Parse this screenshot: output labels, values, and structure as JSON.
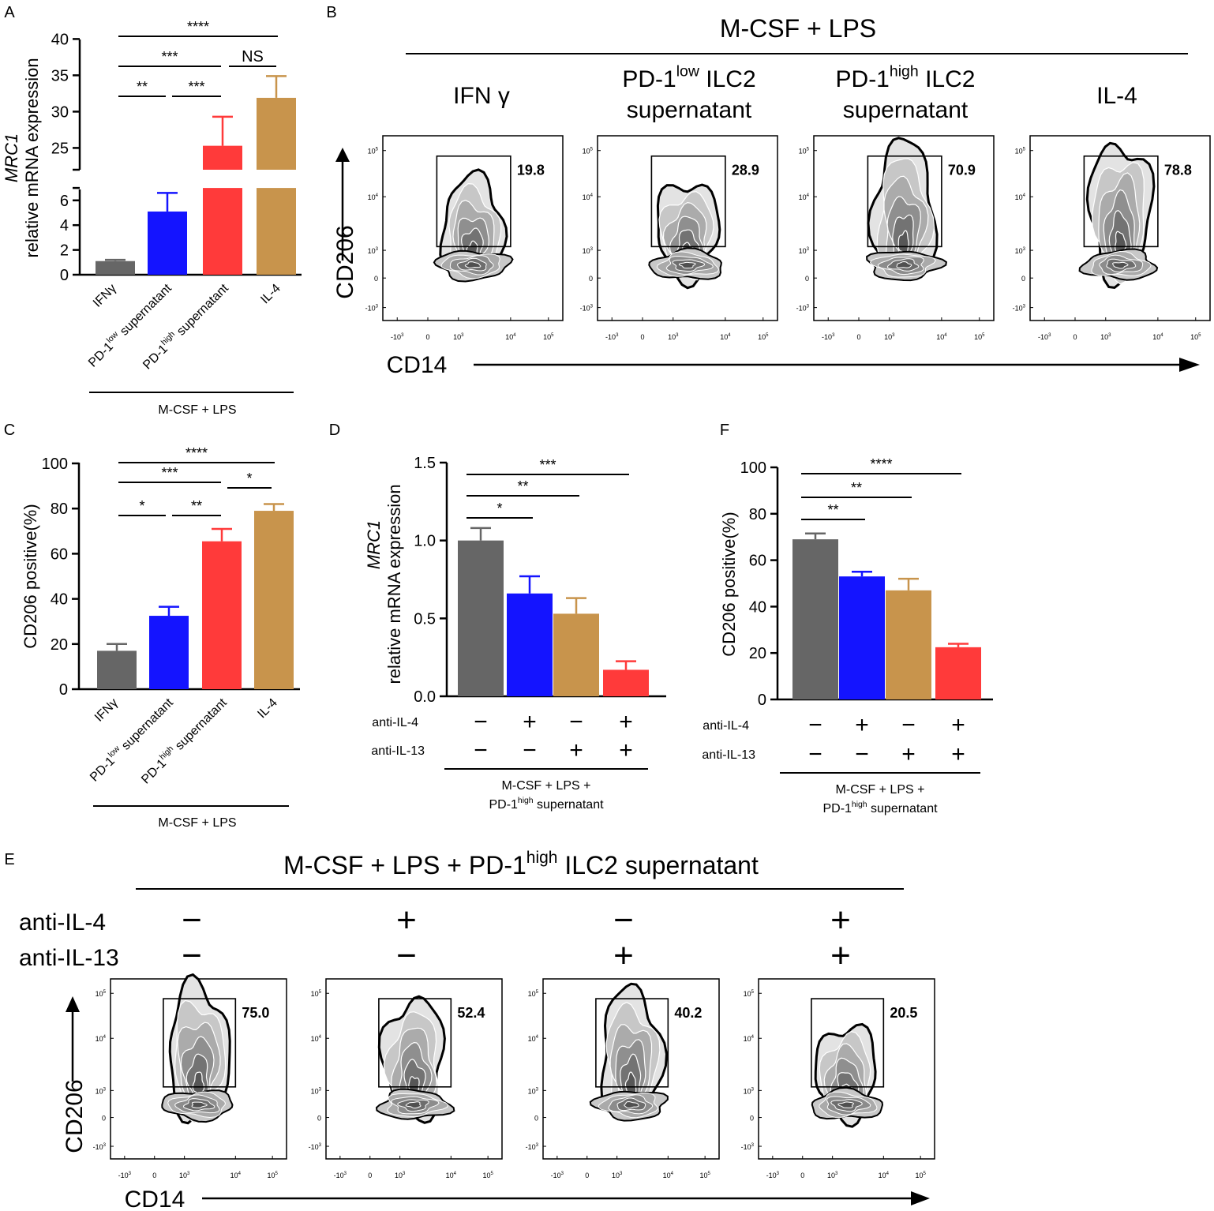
{
  "colors": {
    "grey": "#666666",
    "blue": "#1414ff",
    "red": "#ff3a3a",
    "gold": "#c8944c",
    "black": "#000000"
  },
  "panels": {
    "A": "A",
    "B": "B",
    "C": "C",
    "D": "D",
    "E": "E",
    "F": "F"
  },
  "labels": {
    "treatment": "M-CSF + LPS",
    "treatment_e": "M-CSF + LPS + PD-1high ILC2 supernatant",
    "pd1": "PD-1",
    "low": "low",
    "high": "high",
    "supernatant": "supernatant",
    "ilc2": "ILC2",
    "ifng_sp": "IFN γ",
    "il4": "IL-4",
    "mcsf_lps_plus": "M-CSF + LPS +",
    "anti_il4": "anti-IL-4",
    "anti_il13": "anti-IL-13",
    "mrc1": "MRC1",
    "rel_mrna": "relative mRNA expression",
    "cd206_pos": "CD206 positive(%)",
    "cd206": "CD206",
    "cd14": "CD14",
    "minus": "−",
    "plus": "+"
  },
  "chart_data": [
    {
      "id": "A",
      "type": "bar",
      "title": "",
      "ylabel": "MRC1 relative mRNA expression",
      "axis_break": {
        "lower": [
          0,
          7
        ],
        "upper": [
          22,
          40
        ]
      },
      "yticks_lower": [
        0,
        2,
        4,
        6
      ],
      "yticks_upper": [
        25,
        30,
        35,
        40
      ],
      "categories": [
        "IFNγ",
        "PD-1low supernatant",
        "PD-1high supernatant",
        "IL-4"
      ],
      "values": [
        1.1,
        5.1,
        25.3,
        31.9
      ],
      "errors": [
        0.1,
        1.5,
        4.0,
        3.0
      ],
      "colors": [
        "#666666",
        "#1414ff",
        "#ff3a3a",
        "#c8944c"
      ],
      "group_label": "M-CSF + LPS",
      "significance": [
        {
          "from": 0,
          "to": 1,
          "label": "**"
        },
        {
          "from": 1,
          "to": 2,
          "label": "***"
        },
        {
          "from": 0,
          "to": 2,
          "label": "***"
        },
        {
          "from": 2,
          "to": 3,
          "label": "NS"
        },
        {
          "from": 0,
          "to": 3,
          "label": "****"
        }
      ]
    },
    {
      "id": "C",
      "type": "bar",
      "title": "",
      "ylabel": "CD206 positive(%)",
      "ylim": [
        0,
        100
      ],
      "yticks": [
        0,
        20,
        40,
        60,
        80,
        100
      ],
      "categories": [
        "IFNγ",
        "PD-1low supernatant",
        "PD-1high supernatant",
        "IL-4"
      ],
      "values": [
        17,
        32.5,
        65.5,
        79
      ],
      "errors": [
        3,
        4,
        5.5,
        3
      ],
      "colors": [
        "#666666",
        "#1414ff",
        "#ff3a3a",
        "#c8944c"
      ],
      "group_label": "M-CSF + LPS",
      "significance": [
        {
          "from": 0,
          "to": 1,
          "label": "*"
        },
        {
          "from": 1,
          "to": 2,
          "label": "**"
        },
        {
          "from": 0,
          "to": 2,
          "label": "***"
        },
        {
          "from": 2,
          "to": 3,
          "label": "*"
        },
        {
          "from": 0,
          "to": 3,
          "label": "****"
        }
      ]
    },
    {
      "id": "D",
      "type": "bar",
      "title": "",
      "ylabel": "MRC1 relative mRNA expression",
      "ylim": [
        0,
        1.5
      ],
      "yticks": [
        0.0,
        0.5,
        1.0,
        1.5
      ],
      "ytick_labels": [
        "0.0",
        "0.5",
        "1.0",
        "1.5"
      ],
      "values": [
        1.0,
        0.66,
        0.53,
        0.17
      ],
      "errors": [
        0.08,
        0.11,
        0.1,
        0.055
      ],
      "colors": [
        "#666666",
        "#1414ff",
        "#c8944c",
        "#ff3a3a"
      ],
      "anti_il4": [
        "−",
        "+",
        "−",
        "+"
      ],
      "anti_il13": [
        "−",
        "−",
        "+",
        "+"
      ],
      "group_label": [
        "M-CSF + LPS +",
        "PD-1high supernatant"
      ],
      "significance": [
        {
          "from": 0,
          "to": 1,
          "label": "*"
        },
        {
          "from": 0,
          "to": 2,
          "label": "**"
        },
        {
          "from": 0,
          "to": 3,
          "label": "***"
        }
      ]
    },
    {
      "id": "F",
      "type": "bar",
      "title": "",
      "ylabel": "CD206 positive(%)",
      "ylim": [
        0,
        100
      ],
      "yticks": [
        0,
        20,
        40,
        60,
        80,
        100
      ],
      "values": [
        69,
        53,
        47,
        22.5
      ],
      "errors": [
        2.5,
        2,
        5,
        1.5
      ],
      "colors": [
        "#666666",
        "#1414ff",
        "#c8944c",
        "#ff3a3a"
      ],
      "anti_il4": [
        "−",
        "+",
        "−",
        "+"
      ],
      "anti_il13": [
        "−",
        "−",
        "+",
        "+"
      ],
      "group_label": [
        "M-CSF + LPS +",
        "PD-1high supernatant"
      ],
      "significance": [
        {
          "from": 0,
          "to": 1,
          "label": "**"
        },
        {
          "from": 0,
          "to": 2,
          "label": "**"
        },
        {
          "from": 0,
          "to": 3,
          "label": "****"
        }
      ]
    },
    {
      "id": "B",
      "type": "scatter",
      "subtype": "flow-cytometry-contour",
      "title": "M-CSF + LPS",
      "xlabel": "CD14",
      "ylabel": "CD206",
      "axis_ticks": [
        "-10^3",
        "0",
        "10^3",
        "10^4",
        "10^5"
      ],
      "plots": [
        {
          "condition": "IFN γ",
          "gate_percent": "19.8"
        },
        {
          "condition": "PD-1low ILC2 supernatant",
          "gate_percent": "28.9"
        },
        {
          "condition": "PD-1high ILC2 supernatant",
          "gate_percent": "70.9"
        },
        {
          "condition": "IL-4",
          "gate_percent": "78.8"
        }
      ]
    },
    {
      "id": "E",
      "type": "scatter",
      "subtype": "flow-cytometry-contour",
      "title": "M-CSF + LPS + PD-1high ILC2 supernatant",
      "xlabel": "CD14",
      "ylabel": "CD206",
      "axis_ticks": [
        "-10^3",
        "0",
        "10^3",
        "10^4",
        "10^5"
      ],
      "plots": [
        {
          "anti_il4": "−",
          "anti_il13": "−",
          "gate_percent": "75.0"
        },
        {
          "anti_il4": "+",
          "anti_il13": "−",
          "gate_percent": "52.4"
        },
        {
          "anti_il4": "−",
          "anti_il13": "+",
          "gate_percent": "40.2"
        },
        {
          "anti_il4": "+",
          "anti_il13": "+",
          "gate_percent": "20.5"
        }
      ]
    }
  ]
}
